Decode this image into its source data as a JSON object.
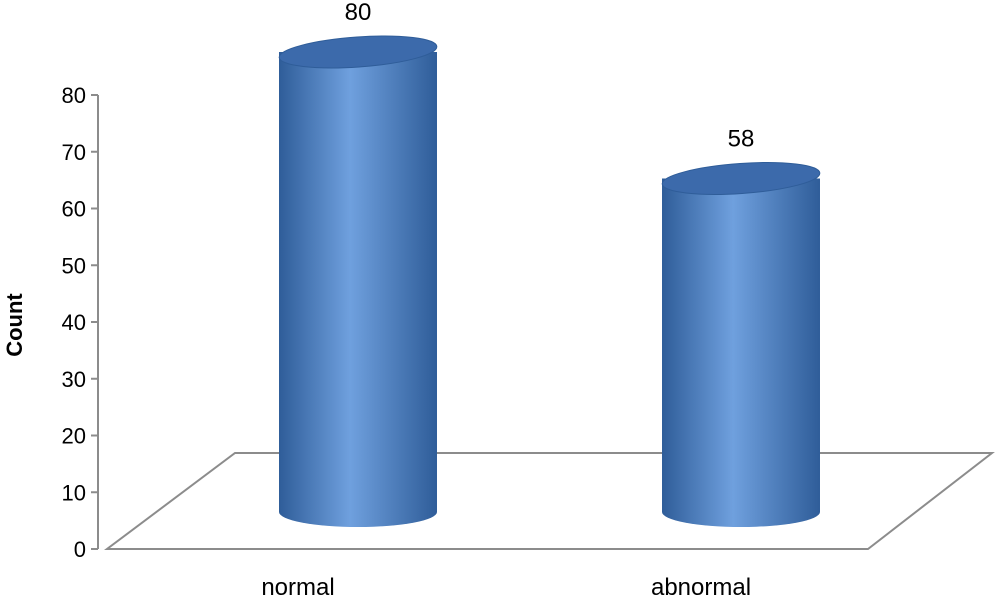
{
  "chart_data": {
    "type": "bar",
    "style": "3d-cylinder",
    "categories": [
      "normal",
      "abnormal"
    ],
    "values": [
      80,
      58
    ],
    "data_labels": [
      "80",
      "58"
    ],
    "title": "",
    "xlabel": "",
    "ylabel": "Count",
    "ylim": [
      0,
      80
    ],
    "yticks": [
      0,
      10,
      20,
      30,
      40,
      50,
      60,
      70,
      80
    ],
    "grid": false,
    "legend": "none"
  },
  "colors": {
    "bar_body": "#4a7fc4",
    "bar_highlight": "#6fa0de",
    "bar_shadow": "#2f5d99",
    "bar_top": "#3c6aab",
    "floor_line": "#8c8c8c",
    "axis_line": "#8c8c8c",
    "text": "#000000"
  }
}
